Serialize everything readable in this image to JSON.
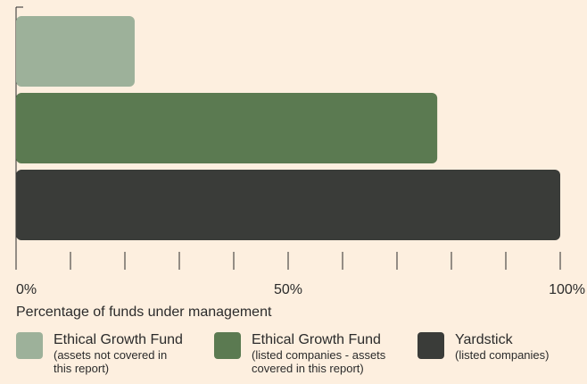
{
  "chart_data": {
    "type": "barh",
    "xlabel": "Percentage of funds under management",
    "series": [
      {
        "name": "Ethical Growth Fund",
        "note": "(assets not covered in this report)",
        "color": "#9db19a",
        "values": [
          21.8
        ]
      },
      {
        "name": "Ethical Growth Fund",
        "note": "(listed companies - assets covered in this report)",
        "color": "#5b7a51",
        "values": [
          77.4
        ]
      },
      {
        "name": "Yardstick",
        "note": "(listed companies)",
        "color": "#3a3c39",
        "values": [
          100
        ]
      }
    ],
    "xlim": [
      0,
      100
    ],
    "xticks": [
      {
        "value": 0,
        "label": "0%"
      },
      {
        "value": 50,
        "label": "50%"
      },
      {
        "value": 100,
        "label": "100%"
      }
    ],
    "xminorticks": [
      0,
      10,
      20,
      30,
      40,
      50,
      60,
      70,
      80,
      90,
      100
    ]
  }
}
